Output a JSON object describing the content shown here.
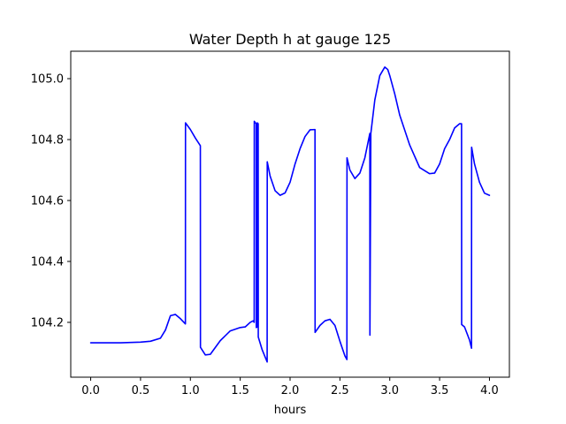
{
  "chart_data": {
    "type": "line",
    "title": "Water Depth h at gauge 125",
    "xlabel": "hours",
    "ylabel": "",
    "xlim": [
      -0.2,
      4.2
    ],
    "ylim": [
      104.02,
      105.09
    ],
    "xticks": [
      0.0,
      0.5,
      1.0,
      1.5,
      2.0,
      2.5,
      3.0,
      3.5,
      4.0
    ],
    "xtick_labels": [
      "0.0",
      "0.5",
      "1.0",
      "1.5",
      "2.0",
      "2.5",
      "3.0",
      "3.5",
      "4.0"
    ],
    "yticks": [
      104.2,
      104.4,
      104.6,
      104.8,
      105.0
    ],
    "ytick_labels": [
      "104.2",
      "104.4",
      "104.6",
      "104.8",
      "105.0"
    ],
    "grid": false,
    "series": [
      {
        "color": "#0000ff",
        "x": [
          0.0,
          0.3,
          0.5,
          0.6,
          0.7,
          0.75,
          0.8,
          0.85,
          0.9,
          0.95,
          0.951,
          1.0,
          1.05,
          1.1,
          1.101,
          1.15,
          1.2,
          1.3,
          1.4,
          1.5,
          1.55,
          1.6,
          1.63,
          1.64,
          1.641,
          1.66,
          1.661,
          1.67,
          1.671,
          1.68,
          1.681,
          1.72,
          1.77,
          1.771,
          1.8,
          1.85,
          1.9,
          1.95,
          2.0,
          2.05,
          2.1,
          2.15,
          2.2,
          2.25,
          2.251,
          2.3,
          2.35,
          2.4,
          2.45,
          2.5,
          2.55,
          2.57,
          2.571,
          2.6,
          2.65,
          2.7,
          2.75,
          2.8,
          2.801,
          2.81,
          2.85,
          2.9,
          2.95,
          2.98,
          3.0,
          3.05,
          3.1,
          3.2,
          3.3,
          3.4,
          3.45,
          3.5,
          3.55,
          3.6,
          3.65,
          3.7,
          3.72,
          3.721,
          3.75,
          3.8,
          3.82,
          3.821,
          3.85,
          3.9,
          3.95,
          4.0
        ],
        "values": [
          104.133,
          104.133,
          104.135,
          104.138,
          104.148,
          104.175,
          104.222,
          104.226,
          104.212,
          104.195,
          104.855,
          104.833,
          104.805,
          104.78,
          104.118,
          104.093,
          104.095,
          104.14,
          104.172,
          104.183,
          104.185,
          104.2,
          104.205,
          104.2,
          104.86,
          104.852,
          104.183,
          104.185,
          104.855,
          104.852,
          104.152,
          104.11,
          104.07,
          104.727,
          104.68,
          104.632,
          104.617,
          104.625,
          104.66,
          104.72,
          104.77,
          104.81,
          104.832,
          104.833,
          104.167,
          104.19,
          104.205,
          104.21,
          104.19,
          104.138,
          104.09,
          104.078,
          104.74,
          104.7,
          104.672,
          104.69,
          104.74,
          104.82,
          104.158,
          104.82,
          104.93,
          105.01,
          105.038,
          105.03,
          105.01,
          104.95,
          104.88,
          104.782,
          104.708,
          104.688,
          104.69,
          104.72,
          104.77,
          104.8,
          104.838,
          104.852,
          104.852,
          104.193,
          104.185,
          104.142,
          104.115,
          104.775,
          104.72,
          104.66,
          104.624,
          104.617
        ]
      }
    ]
  }
}
